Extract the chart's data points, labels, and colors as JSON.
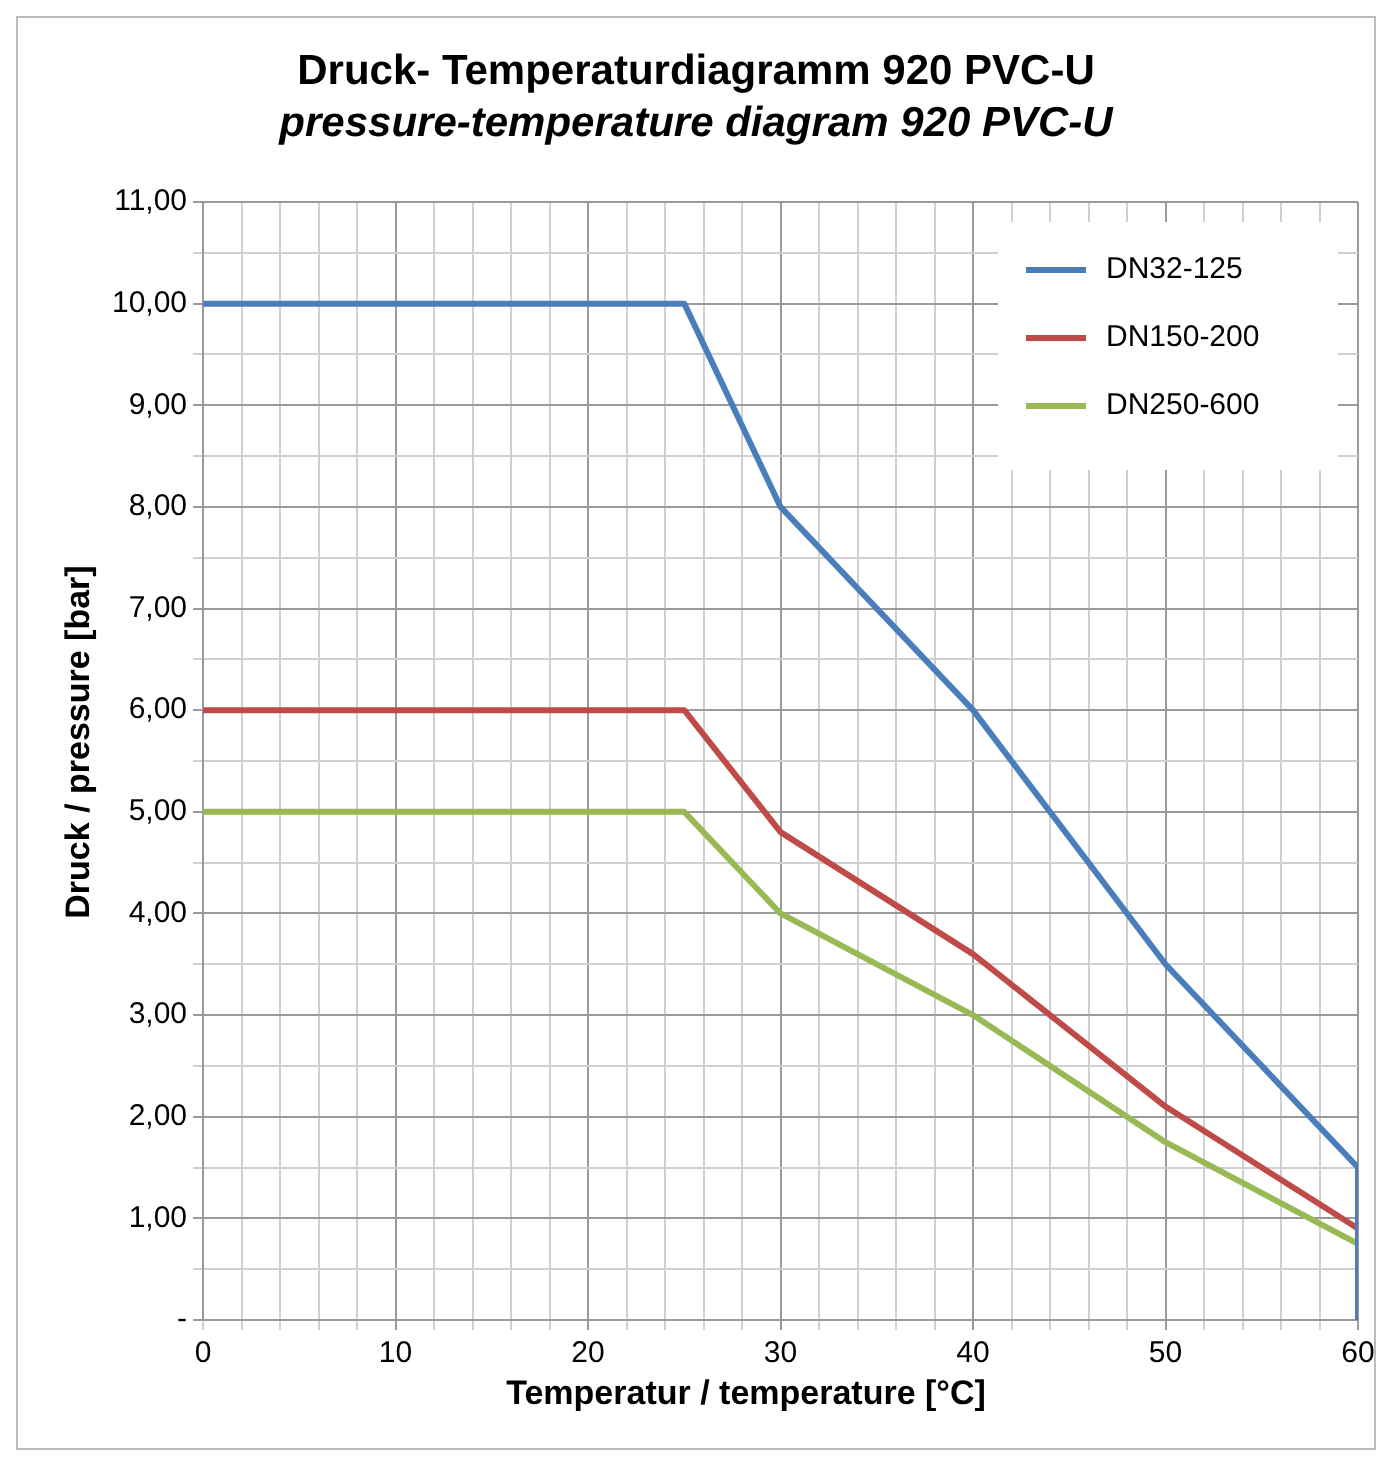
{
  "chart_data": {
    "type": "line",
    "title": "Druck- Temperaturdiagramm 920 PVC-U",
    "subtitle": "pressure-temperature  diagram 920 PVC-U",
    "xlabel": "Temperatur / temperature [°C]",
    "ylabel": "Druck / pressure [bar]",
    "xlim": [
      0,
      60
    ],
    "xticks": [
      0,
      {
        "value": 2,
        "label": null
      },
      {
        "value": 4,
        "label": null
      },
      {
        "value": 6,
        "label": null
      },
      {
        "value": 8,
        "label": null
      },
      10,
      {
        "value": 12,
        "label": null
      },
      {
        "value": 14,
        "label": null
      },
      {
        "value": 16,
        "label": null
      },
      {
        "value": 18,
        "label": null
      },
      20,
      {
        "value": 22,
        "label": null
      },
      {
        "value": 24,
        "label": null
      },
      {
        "value": 26,
        "label": null
      },
      {
        "value": 28,
        "label": null
      },
      30,
      {
        "value": 32,
        "label": null
      },
      {
        "value": 34,
        "label": null
      },
      {
        "value": 36,
        "label": null
      },
      {
        "value": 38,
        "label": null
      },
      40,
      {
        "value": 42,
        "label": null
      },
      {
        "value": 44,
        "label": null
      },
      {
        "value": 46,
        "label": null
      },
      {
        "value": 48,
        "label": null
      },
      50,
      {
        "value": 52,
        "label": null
      },
      {
        "value": 54,
        "label": null
      },
      {
        "value": 56,
        "label": null
      },
      {
        "value": 58,
        "label": null
      },
      60
    ],
    "ylim": [
      0,
      11
    ],
    "yticks": [
      {
        "value": 0,
        "label": "-"
      },
      {
        "value": 0.5,
        "label": null
      },
      {
        "value": 1,
        "label": "1,00"
      },
      {
        "value": 1.5,
        "label": null
      },
      {
        "value": 2,
        "label": "2,00"
      },
      {
        "value": 2.5,
        "label": null
      },
      {
        "value": 3,
        "label": "3,00"
      },
      {
        "value": 3.5,
        "label": null
      },
      {
        "value": 4,
        "label": "4,00"
      },
      {
        "value": 4.5,
        "label": null
      },
      {
        "value": 5,
        "label": "5,00"
      },
      {
        "value": 5.5,
        "label": null
      },
      {
        "value": 6,
        "label": "6,00"
      },
      {
        "value": 6.5,
        "label": null
      },
      {
        "value": 7,
        "label": "7,00"
      },
      {
        "value": 7.5,
        "label": null
      },
      {
        "value": 8,
        "label": "8,00"
      },
      {
        "value": 8.5,
        "label": null
      },
      {
        "value": 9,
        "label": "9,00"
      },
      {
        "value": 9.5,
        "label": null
      },
      {
        "value": 10,
        "label": "10,00"
      },
      {
        "value": 10.5,
        "label": null
      },
      {
        "value": 11,
        "label": "11,00"
      }
    ],
    "grid": true,
    "legend": "top right",
    "marker": "none",
    "line_style": "solid",
    "series": [
      {
        "name": "DN32-125",
        "color": "#4a7ebb",
        "x": [
          0,
          25,
          30,
          40,
          50,
          60,
          60
        ],
        "values": [
          10,
          10,
          8,
          6,
          3.5,
          1.5,
          0
        ]
      },
      {
        "name": "DN150-200",
        "color": "#be4b48",
        "x": [
          0,
          25,
          30,
          40,
          50,
          60,
          60
        ],
        "values": [
          6,
          6,
          4.8,
          3.6,
          2.1,
          0.9,
          0
        ]
      },
      {
        "name": "DN250-600",
        "color": "#98b954",
        "x": [
          0,
          25,
          30,
          40,
          50,
          60,
          60
        ],
        "values": [
          5,
          5,
          4,
          3,
          1.75,
          0.75,
          0
        ]
      }
    ]
  }
}
